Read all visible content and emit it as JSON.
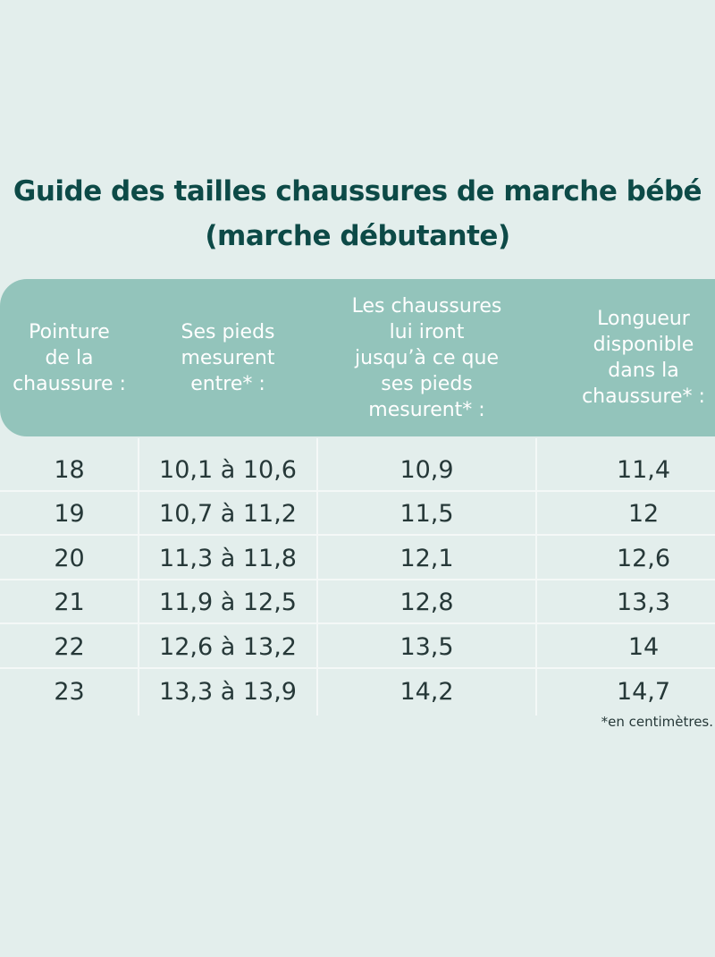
{
  "header": {
    "title": [
      "Guide des tailles chaussures de marche bébé",
      "(marche débutante)"
    ]
  },
  "table": {
    "columns": [
      [
        "Pointure",
        "de la",
        "chaussure :"
      ],
      [
        "Ses pieds",
        "mesurent",
        "entre* :"
      ],
      [
        "Les chaussures",
        "lui iront",
        "jusqu’à ce que",
        "ses pieds",
        "mesurent* :"
      ],
      [
        "Longueur",
        "disponible",
        "dans la",
        "chaussure* :"
      ]
    ],
    "rows": [
      [
        "18",
        "10,1 à 10,6",
        "10,9",
        "11,4"
      ],
      [
        "19",
        "10,7 à 11,2",
        "11,5",
        "12"
      ],
      [
        "20",
        "11,3 à 11,8",
        "12,1",
        "12,6"
      ],
      [
        "21",
        "11,9 à 12,5",
        "12,8",
        "13,3"
      ],
      [
        "22",
        "12,6 à 13,2",
        "13,5",
        "14"
      ],
      [
        "23",
        "13,3 à 13,9",
        "14,2",
        "14,7"
      ]
    ],
    "footnote": "*en centimètres."
  }
}
